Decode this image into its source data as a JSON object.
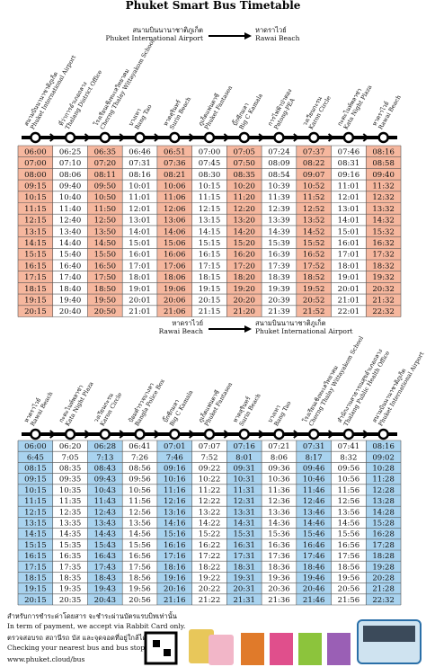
{
  "title": "Phuket Smart Bus Timetable",
  "routes": [
    {
      "from_th": "สนามบินนานาชาติภูเก็ต",
      "from_en": "Phuket International Airport",
      "to_th": "หาดราไวย์",
      "to_en": "Rawai Beach",
      "stops": [
        {
          "th": "สนามบินนานาชาติภูเก็ต",
          "en": "Phuket International Airport"
        },
        {
          "th": "ที่ว่าการอำเภอถลาง",
          "en": "Thalang District Office"
        },
        {
          "th": "โรงเรียนเชิงทะเลวิทยาคม",
          "en": "Cherng Thalay Wittayakom School"
        },
        {
          "th": "บางเทา",
          "en": "Bang Tao"
        },
        {
          "th": "หาดสุรินทร์",
          "en": "Surin Beach"
        },
        {
          "th": "ภูเก็ตแฟนตาซี",
          "en": "Phuket Fantasea"
        },
        {
          "th": "บิ๊กซีกมลา",
          "en": "Big C Kamala"
        },
        {
          "th": "การไฟฟ้าป่าตอง",
          "en": "Patong-PEA"
        },
        {
          "th": "วงเวียนกะรน",
          "en": "Karon Circle"
        },
        {
          "th": "กะตะไนท์พลาซ่า",
          "en": "Kata Night Plaza"
        },
        {
          "th": "หาดราไวย์",
          "en": "Rawai Beach"
        }
      ],
      "rows": [
        [
          "06:00",
          "06:25",
          "06:35",
          "06:46",
          "06:51",
          "07:00",
          "07:05",
          "07:24",
          "07:37",
          "07:46",
          "08:16"
        ],
        [
          "07:00",
          "07:10",
          "07:20",
          "07:31",
          "07:36",
          "07:45",
          "07:50",
          "08:09",
          "08:22",
          "08:31",
          "08:58"
        ],
        [
          "08:00",
          "08:06",
          "08:11",
          "08:16",
          "08:21",
          "08:30",
          "08:35",
          "08:54",
          "09:07",
          "09:16",
          "09:40"
        ],
        [
          "09:15",
          "09:40",
          "09:50",
          "10:01",
          "10:06",
          "10:15",
          "10:20",
          "10:39",
          "10:52",
          "11:01",
          "11:32"
        ],
        [
          "10:15",
          "10:40",
          "10:50",
          "11:01",
          "11:06",
          "11:15",
          "11:20",
          "11:39",
          "11:52",
          "12:01",
          "12:32"
        ],
        [
          "11:15",
          "11:40",
          "11:50",
          "12:01",
          "12:06",
          "12:15",
          "12:20",
          "12:39",
          "12:52",
          "13:01",
          "13:32"
        ],
        [
          "12:15",
          "12:40",
          "12:50",
          "13:01",
          "13:06",
          "13:15",
          "13:20",
          "13:39",
          "13:52",
          "14:01",
          "14:32"
        ],
        [
          "13:15",
          "13:40",
          "13:50",
          "14:01",
          "14:06",
          "14:15",
          "14:20",
          "14:39",
          "14:52",
          "15:01",
          "15:32"
        ],
        [
          "14:15",
          "14:40",
          "14:50",
          "15:01",
          "15:06",
          "15:15",
          "15:20",
          "15:39",
          "15:52",
          "16:01",
          "16:32"
        ],
        [
          "15:15",
          "15:40",
          "15:50",
          "16:01",
          "16:06",
          "16:15",
          "16:20",
          "16:39",
          "16:52",
          "17:01",
          "17:32"
        ],
        [
          "16:15",
          "16:40",
          "16:50",
          "17:01",
          "17:06",
          "17:15",
          "17:20",
          "17:39",
          "17:52",
          "18:01",
          "18:32"
        ],
        [
          "17:15",
          "17:40",
          "17:50",
          "18:01",
          "18:06",
          "18:15",
          "18:20",
          "18:39",
          "18:52",
          "19:01",
          "19:32"
        ],
        [
          "18:15",
          "18:40",
          "18:50",
          "19:01",
          "19:06",
          "19:15",
          "19:20",
          "19:39",
          "19:52",
          "20:01",
          "20:32"
        ],
        [
          "19:15",
          "19:40",
          "19:50",
          "20:01",
          "20:06",
          "20:15",
          "20:20",
          "20:39",
          "20:52",
          "21:01",
          "21:32"
        ],
        [
          "20:15",
          "20:40",
          "20:50",
          "21:01",
          "21:06",
          "21:15",
          "21:20",
          "21:39",
          "21:52",
          "22:01",
          "22:32"
        ]
      ]
    },
    {
      "from_th": "หาดราไวย์",
      "from_en": "Rawai Beach",
      "to_th": "สนามบินนานาชาติภูเก็ต",
      "to_en": "Phuket International Airport",
      "stops": [
        {
          "th": "หาดราไวย์",
          "en": "Rawai Beach"
        },
        {
          "th": "กะตะไนท์พลาซ่า",
          "en": "Kata Night Plaza"
        },
        {
          "th": "วงเวียนกะรน",
          "en": "Karon Circle"
        },
        {
          "th": "ป้อมตำรวจบางลา",
          "en": "Bangla Police Box"
        },
        {
          "th": "บิ๊กซีกมลา",
          "en": "Big C Kamala"
        },
        {
          "th": "ภูเก็ตแฟนตาซี",
          "en": "Phuket Fantasea"
        },
        {
          "th": "หาดสุรินทร์",
          "en": "Surin Beach"
        },
        {
          "th": "บางเทา",
          "en": "Bang Tao"
        },
        {
          "th": "โรงเรียนเชิงทะเลวิทยาคม",
          "en": "Cherng Thalay Wittayakom School"
        },
        {
          "th": "สำนักงานสาธารณสุขอำเภอถลาง",
          "en": "Thalang Public Health Office"
        },
        {
          "th": "สนามบินนานาชาติภูเก็ต",
          "en": "Phuket International Airport"
        }
      ],
      "rows": [
        [
          "06:00",
          "06:20",
          "06:28",
          "06:41",
          "07:01",
          "07:07",
          "07:16",
          "07:21",
          "07:31",
          "07:41",
          "08:16"
        ],
        [
          "6:45",
          "7:05",
          "7:13",
          "7:26",
          "7:46",
          "7:52",
          "8:01",
          "8:06",
          "8:17",
          "8:32",
          "09:02"
        ],
        [
          "08:15",
          "08:35",
          "08:43",
          "08:56",
          "09:16",
          "09:22",
          "09:31",
          "09:36",
          "09:46",
          "09:56",
          "10:28"
        ],
        [
          "09:15",
          "09:35",
          "09:43",
          "09:56",
          "10:16",
          "10:22",
          "10:31",
          "10:36",
          "10:46",
          "10:56",
          "11:28"
        ],
        [
          "10:15",
          "10:35",
          "10:43",
          "10:56",
          "11:16",
          "11:22",
          "11:31",
          "11:36",
          "11:46",
          "11:56",
          "12:28"
        ],
        [
          "11:15",
          "11:35",
          "11:43",
          "11:56",
          "12:16",
          "12:22",
          "12:31",
          "12:36",
          "12:46",
          "12:56",
          "13:28"
        ],
        [
          "12:15",
          "12:35",
          "12:43",
          "12:56",
          "13:16",
          "13:22",
          "13:31",
          "13:36",
          "13:46",
          "13:56",
          "14:28"
        ],
        [
          "13:15",
          "13:35",
          "13:43",
          "13:56",
          "14:16",
          "14:22",
          "14:31",
          "14:36",
          "14:46",
          "14:56",
          "15:28"
        ],
        [
          "14:15",
          "14:35",
          "14:43",
          "14:56",
          "15:16",
          "15:22",
          "15:31",
          "15:36",
          "15:46",
          "15:56",
          "16:28"
        ],
        [
          "15:15",
          "15:35",
          "15:43",
          "15:56",
          "16:16",
          "16:22",
          "16:31",
          "16:36",
          "16:46",
          "16:56",
          "17:28"
        ],
        [
          "16:15",
          "16:35",
          "16:43",
          "16:56",
          "17:16",
          "17:22",
          "17:31",
          "17:36",
          "17:46",
          "17:56",
          "18:28"
        ],
        [
          "17:15",
          "17:35",
          "17:43",
          "17:56",
          "18:16",
          "18:22",
          "18:31",
          "18:36",
          "18:46",
          "18:56",
          "19:28"
        ],
        [
          "18:15",
          "18:35",
          "18:43",
          "18:56",
          "19:16",
          "19:22",
          "19:31",
          "19:36",
          "19:46",
          "19:56",
          "20:28"
        ],
        [
          "19:15",
          "19:35",
          "19:43",
          "19:56",
          "20:16",
          "20:22",
          "20:31",
          "20:36",
          "20:46",
          "20:56",
          "21:28"
        ],
        [
          "20:15",
          "20:35",
          "20:43",
          "20:56",
          "21:16",
          "21:22",
          "21:31",
          "21:36",
          "21:46",
          "21:56",
          "22:32"
        ]
      ]
    }
  ],
  "footer": {
    "payment_th": "สำหรับการชำระค่าโดยสาร จะชำระผ่านบัตรแรบบิทเท่านั้น",
    "payment_en": "In term of payment, we accept via Rabbit Card only.",
    "check_th": "ตรวจสอบรถ สถานีรถ บัส และจุดจอดที่อยู่ใกล้ได้ที่",
    "check_en": "Checking your nearest bus and bus stop at :",
    "url": "www.phuket.cloud/bus"
  }
}
